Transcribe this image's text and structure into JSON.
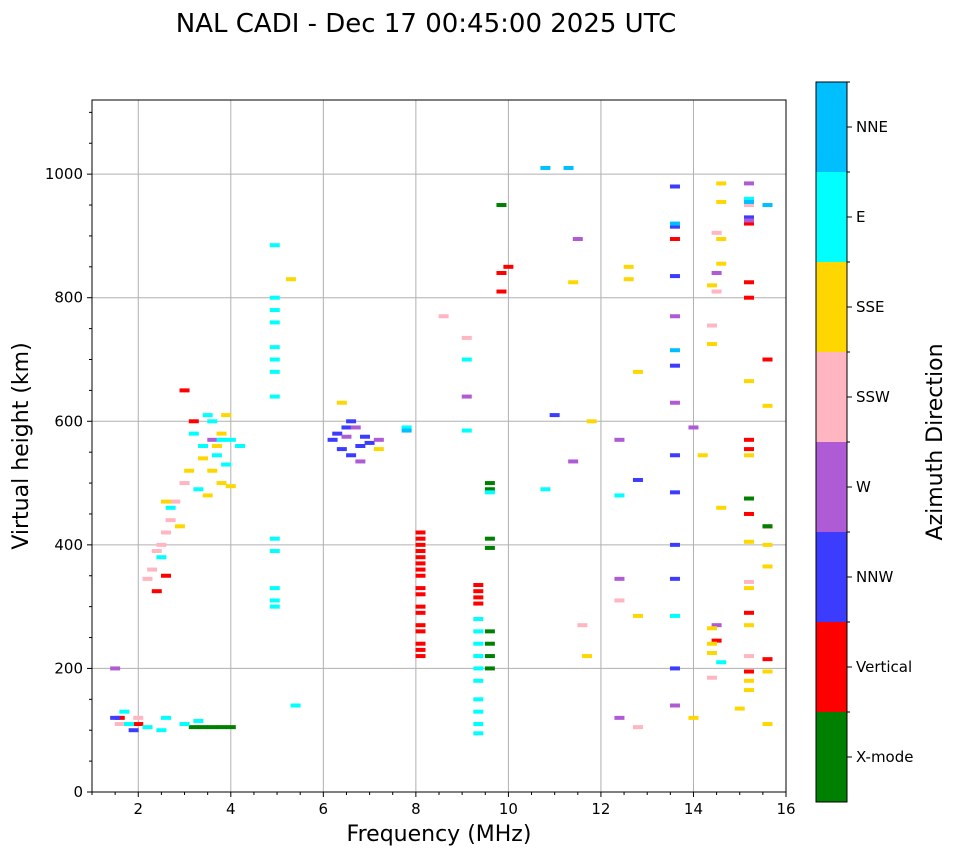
{
  "chart_data": {
    "type": "scatter",
    "title": "NAL CADI - Dec 17 00:45:00 2025 UTC",
    "xlabel": "Frequency (MHz)",
    "ylabel": "Virtual height (km)",
    "xlim": [
      1,
      16
    ],
    "ylim": [
      0,
      1120
    ],
    "xticks": [
      2,
      4,
      6,
      8,
      10,
      12,
      14,
      16
    ],
    "yticks": [
      0,
      200,
      400,
      600,
      800,
      1000
    ],
    "grid": true,
    "colorbar": {
      "label": "Azimuth Direction",
      "categories": [
        {
          "name": "X-mode",
          "color": "#008000"
        },
        {
          "name": "Vertical",
          "color": "#ff0000"
        },
        {
          "name": "NNW",
          "color": "#3c3cff"
        },
        {
          "name": "W",
          "color": "#b05bd6"
        },
        {
          "name": "SSW",
          "color": "#ffb6c1"
        },
        {
          "name": "SSE",
          "color": "#ffd700"
        },
        {
          "name": "E",
          "color": "#00ffff"
        },
        {
          "name": "NNE",
          "color": "#00bfff"
        }
      ]
    },
    "series": [
      {
        "name": "Vertical",
        "points": [
          [
            8.1,
            420
          ],
          [
            8.1,
            410
          ],
          [
            8.1,
            400
          ],
          [
            8.1,
            390
          ],
          [
            8.1,
            380
          ],
          [
            8.1,
            370
          ],
          [
            8.1,
            360
          ],
          [
            8.1,
            350
          ],
          [
            8.1,
            330
          ],
          [
            8.1,
            320
          ],
          [
            8.1,
            300
          ],
          [
            8.1,
            290
          ],
          [
            8.1,
            270
          ],
          [
            8.1,
            260
          ],
          [
            8.1,
            240
          ],
          [
            8.1,
            230
          ],
          [
            8.1,
            220
          ],
          [
            9.35,
            335
          ],
          [
            9.35,
            325
          ],
          [
            9.35,
            315
          ],
          [
            9.35,
            305
          ],
          [
            15.2,
            920
          ],
          [
            15.2,
            825
          ],
          [
            15.2,
            800
          ],
          [
            15.6,
            700
          ],
          [
            15.2,
            570
          ],
          [
            15.2,
            555
          ],
          [
            15.2,
            450
          ],
          [
            15.6,
            430
          ],
          [
            15.2,
            290
          ],
          [
            15.6,
            215
          ],
          [
            15.2,
            195
          ],
          [
            14.5,
            245
          ],
          [
            10.0,
            850
          ],
          [
            9.85,
            840
          ],
          [
            9.85,
            810
          ],
          [
            13.6,
            895
          ],
          [
            2.0,
            110
          ],
          [
            1.6,
            120
          ],
          [
            2.4,
            325
          ],
          [
            2.6,
            350
          ],
          [
            3.0,
            650
          ],
          [
            3.2,
            600
          ]
        ]
      },
      {
        "name": "X-mode",
        "points": [
          [
            9.85,
            950
          ],
          [
            9.6,
            410
          ],
          [
            9.6,
            395
          ],
          [
            9.6,
            490
          ],
          [
            9.6,
            500
          ],
          [
            9.6,
            260
          ],
          [
            9.6,
            240
          ],
          [
            9.6,
            220
          ],
          [
            9.6,
            200
          ],
          [
            15.2,
            475
          ],
          [
            15.6,
            430
          ],
          [
            3.2,
            105
          ],
          [
            3.4,
            105
          ],
          [
            3.6,
            105
          ],
          [
            3.8,
            105
          ],
          [
            4.0,
            105
          ]
        ]
      },
      {
        "name": "NNW",
        "points": [
          [
            6.2,
            570
          ],
          [
            6.4,
            555
          ],
          [
            6.6,
            545
          ],
          [
            6.8,
            560
          ],
          [
            6.5,
            590
          ],
          [
            6.3,
            580
          ],
          [
            7.0,
            565
          ],
          [
            6.6,
            600
          ],
          [
            6.9,
            575
          ],
          [
            13.6,
            980
          ],
          [
            13.6,
            915
          ],
          [
            13.6,
            835
          ],
          [
            13.6,
            690
          ],
          [
            13.6,
            545
          ],
          [
            13.6,
            485
          ],
          [
            13.6,
            400
          ],
          [
            13.6,
            345
          ],
          [
            13.6,
            200
          ],
          [
            15.2,
            930
          ],
          [
            11.0,
            610
          ],
          [
            12.8,
            505
          ],
          [
            1.5,
            120
          ],
          [
            1.9,
            100
          ]
        ]
      },
      {
        "name": "W",
        "points": [
          [
            6.5,
            575
          ],
          [
            6.7,
            590
          ],
          [
            7.2,
            570
          ],
          [
            6.8,
            535
          ],
          [
            12.4,
            570
          ],
          [
            12.4,
            345
          ],
          [
            13.6,
            770
          ],
          [
            13.6,
            630
          ],
          [
            14.5,
            840
          ],
          [
            15.2,
            985
          ],
          [
            15.2,
            925
          ],
          [
            14.0,
            590
          ],
          [
            11.5,
            895
          ],
          [
            11.4,
            535
          ],
          [
            14.5,
            270
          ],
          [
            12.4,
            120
          ],
          [
            13.6,
            140
          ],
          [
            1.5,
            200
          ],
          [
            9.1,
            640
          ],
          [
            3.6,
            570
          ]
        ]
      },
      {
        "name": "SSW",
        "points": [
          [
            8.6,
            770
          ],
          [
            9.1,
            735
          ],
          [
            14.5,
            905
          ],
          [
            14.5,
            810
          ],
          [
            14.4,
            755
          ],
          [
            15.2,
            950
          ],
          [
            15.2,
            340
          ],
          [
            15.2,
            220
          ],
          [
            12.4,
            310
          ],
          [
            12.8,
            105
          ],
          [
            14.4,
            185
          ],
          [
            2.4,
            390
          ],
          [
            2.5,
            400
          ],
          [
            2.3,
            360
          ],
          [
            2.6,
            420
          ],
          [
            2.8,
            470
          ],
          [
            2.2,
            345
          ],
          [
            2.7,
            440
          ],
          [
            3.0,
            500
          ],
          [
            1.6,
            110
          ],
          [
            2.0,
            120
          ],
          [
            11.6,
            270
          ]
        ]
      },
      {
        "name": "SSE",
        "points": [
          [
            14.6,
            985
          ],
          [
            14.6,
            955
          ],
          [
            14.6,
            895
          ],
          [
            14.6,
            855
          ],
          [
            14.4,
            820
          ],
          [
            14.4,
            725
          ],
          [
            12.6,
            850
          ],
          [
            12.6,
            830
          ],
          [
            12.8,
            680
          ],
          [
            15.6,
            625
          ],
          [
            15.2,
            665
          ],
          [
            15.2,
            545
          ],
          [
            14.2,
            545
          ],
          [
            14.6,
            460
          ],
          [
            15.6,
            400
          ],
          [
            15.2,
            405
          ],
          [
            15.6,
            365
          ],
          [
            15.2,
            330
          ],
          [
            15.2,
            270
          ],
          [
            14.4,
            265
          ],
          [
            14.4,
            240
          ],
          [
            14.4,
            225
          ],
          [
            15.2,
            180
          ],
          [
            15.2,
            165
          ],
          [
            15.6,
            195
          ],
          [
            15.0,
            135
          ],
          [
            15.6,
            110
          ],
          [
            12.8,
            285
          ],
          [
            11.7,
            220
          ],
          [
            11.8,
            600
          ],
          [
            3.6,
            520
          ],
          [
            3.8,
            500
          ],
          [
            3.4,
            540
          ],
          [
            3.7,
            560
          ],
          [
            4.0,
            495
          ],
          [
            3.9,
            610
          ],
          [
            3.5,
            480
          ],
          [
            3.8,
            580
          ],
          [
            2.9,
            430
          ],
          [
            2.6,
            470
          ],
          [
            3.1,
            520
          ],
          [
            6.4,
            630
          ],
          [
            7.2,
            555
          ],
          [
            5.3,
            830
          ],
          [
            14.0,
            120
          ],
          [
            11.4,
            825
          ]
        ]
      },
      {
        "name": "E",
        "points": [
          [
            4.95,
            885
          ],
          [
            4.95,
            800
          ],
          [
            4.95,
            780
          ],
          [
            4.95,
            760
          ],
          [
            4.95,
            720
          ],
          [
            4.95,
            700
          ],
          [
            4.95,
            680
          ],
          [
            4.95,
            640
          ],
          [
            4.95,
            330
          ],
          [
            4.95,
            310
          ],
          [
            4.95,
            300
          ],
          [
            4.95,
            410
          ],
          [
            4.95,
            390
          ],
          [
            9.35,
            280
          ],
          [
            9.35,
            260
          ],
          [
            9.35,
            240
          ],
          [
            9.35,
            220
          ],
          [
            9.35,
            200
          ],
          [
            9.35,
            180
          ],
          [
            9.35,
            150
          ],
          [
            9.35,
            130
          ],
          [
            9.35,
            110
          ],
          [
            9.35,
            95
          ],
          [
            9.6,
            485
          ],
          [
            9.1,
            700
          ],
          [
            9.1,
            585
          ],
          [
            10.8,
            490
          ],
          [
            12.4,
            480
          ],
          [
            13.6,
            285
          ],
          [
            14.6,
            210
          ],
          [
            15.2,
            960
          ],
          [
            3.6,
            600
          ],
          [
            3.8,
            570
          ],
          [
            3.4,
            560
          ],
          [
            4.0,
            570
          ],
          [
            3.7,
            545
          ],
          [
            3.5,
            610
          ],
          [
            3.9,
            530
          ],
          [
            4.2,
            560
          ],
          [
            3.2,
            580
          ],
          [
            2.7,
            460
          ],
          [
            2.5,
            380
          ],
          [
            3.3,
            490
          ],
          [
            1.8,
            110
          ],
          [
            2.2,
            105
          ],
          [
            2.6,
            120
          ],
          [
            3.0,
            110
          ],
          [
            3.3,
            115
          ],
          [
            1.7,
            130
          ],
          [
            2.5,
            100
          ],
          [
            5.4,
            140
          ],
          [
            7.8,
            590
          ]
        ]
      },
      {
        "name": "NNE",
        "points": [
          [
            10.8,
            1010
          ],
          [
            11.3,
            1010
          ],
          [
            13.6,
            920
          ],
          [
            13.6,
            715
          ],
          [
            15.2,
            955
          ],
          [
            15.6,
            950
          ],
          [
            7.8,
            585
          ]
        ]
      }
    ]
  }
}
